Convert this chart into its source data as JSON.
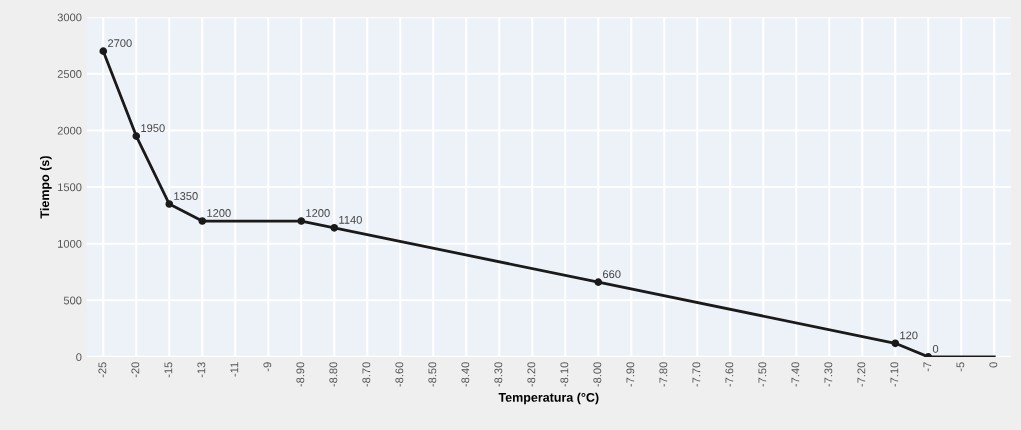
{
  "chart_data": {
    "type": "line",
    "xlabel": "Temperatura (°C)",
    "ylabel": "Tiempo (s)",
    "categories": [
      "-25",
      "-20",
      "-15",
      "-13",
      "-11",
      "-9",
      "-8.90",
      "-8.80",
      "-8.70",
      "-8.60",
      "-8.50",
      "-8.40",
      "-8.30",
      "-8.20",
      "-8.10",
      "-8.00",
      "-7.90",
      "-7.80",
      "-7.70",
      "-7.60",
      "-7.50",
      "-7.40",
      "-7.30",
      "-7.20",
      "-7.10",
      "-7",
      "-5",
      "0"
    ],
    "series": [
      {
        "color": "#1a1a1a",
        "values": [
          2700,
          1950,
          1350,
          1200,
          null,
          null,
          1200,
          1140,
          null,
          null,
          null,
          null,
          null,
          null,
          null,
          660,
          null,
          null,
          null,
          null,
          null,
          null,
          null,
          null,
          120,
          0,
          0,
          0
        ],
        "value_labels": [
          "2700",
          "1950",
          "1350",
          "1200",
          null,
          null,
          "1200",
          "1140",
          null,
          null,
          null,
          null,
          null,
          null,
          null,
          "660",
          null,
          null,
          null,
          null,
          null,
          null,
          null,
          null,
          "120",
          "0",
          null,
          null
        ]
      }
    ],
    "ylim": [
      0,
      3000
    ],
    "yticks": [
      0,
      500,
      1000,
      1500,
      2000,
      2500,
      3000
    ],
    "grid": true,
    "marker": "circle",
    "line_style": "solid"
  }
}
